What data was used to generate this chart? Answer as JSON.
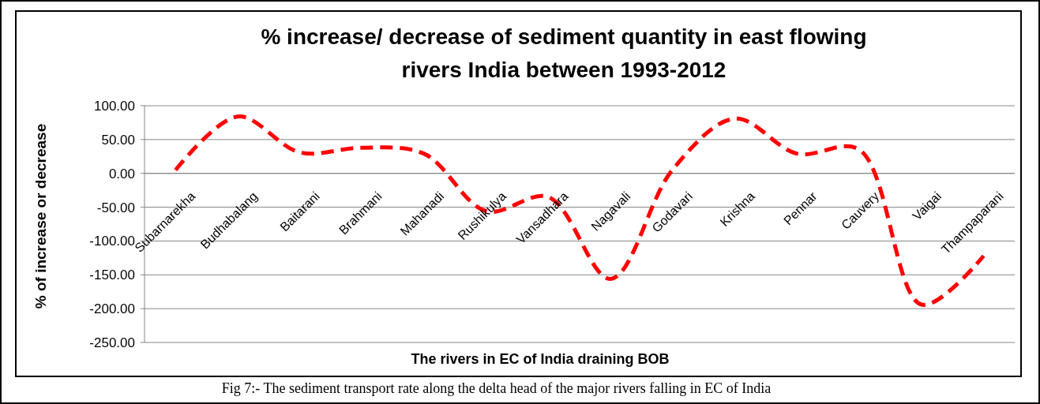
{
  "chart_data": {
    "type": "line",
    "title": "% increase/ decrease of sediment quantity in east flowing rivers India between 1993-2012",
    "xlabel": "The rivers in EC of India draining BOB",
    "ylabel": "% of increase or decrease",
    "categories": [
      "Subarnarekha",
      "Budhabalang",
      "Baitarani",
      "Brahmani",
      "Mahanadi",
      "Rushikulya",
      "Vansadhara",
      "Nagavali",
      "Godavari",
      "Krishna",
      "Pennar",
      "Cauvery",
      "Vaigai",
      "Thampaparani"
    ],
    "series": [
      {
        "color": "#ff0000",
        "values": [
          5,
          84,
          31,
          38,
          29,
          -56,
          -35,
          -156,
          6,
          81,
          29,
          35,
          -194,
          -122
        ]
      }
    ],
    "ylim": [
      -250,
      100
    ],
    "yticks": [
      {
        "value": -250,
        "label": "-250.00"
      },
      {
        "value": -200,
        "label": "-200.00"
      },
      {
        "value": -150,
        "label": "-150.00"
      },
      {
        "value": -100,
        "label": "-100.00"
      },
      {
        "value": -50,
        "label": "-50.00"
      },
      {
        "value": 0,
        "label": "0.00"
      },
      {
        "value": 50,
        "label": "50.00"
      },
      {
        "value": 100,
        "label": "100.00"
      }
    ],
    "grid": "y",
    "marker": "none",
    "line_style": "dashed",
    "annotations": [
      "Fig 7:- The sediment transport rate along the delta head of the major rivers falling in EC of India"
    ]
  }
}
